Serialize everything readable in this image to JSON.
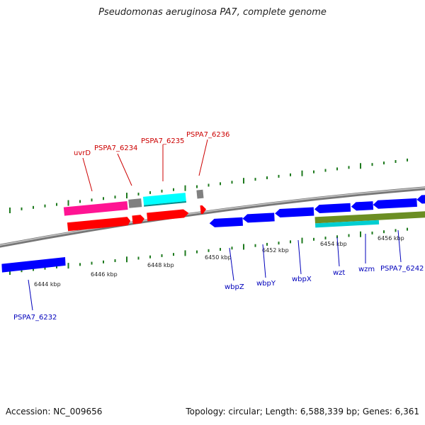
{
  "title": "Pseudomonas aeruginosa PA7, complete genome",
  "footer": {
    "accession": "Accession: NC_009656",
    "summary": "Topology: circular; Length: 6,588,339 bp; Genes: 6,361"
  },
  "colors": {
    "backbone": "#8a8a8a",
    "ticks": "#1e7a1e",
    "kbp_text": "#222222",
    "label_forward": "#cc0000",
    "label_reverse": "#0000bb"
  },
  "scale": {
    "unit": "kbp",
    "labels": [
      "6444 kbp",
      "6446 kbp",
      "6448 kbp",
      "6450 kbp",
      "6452 kbp",
      "6454 kbp",
      "6456 kbp"
    ]
  },
  "gene_labels": {
    "forward": [
      "uvrD",
      "PSPA7_6234",
      "PSPA7_6235",
      "PSPA7_6236"
    ],
    "reverse": [
      "PSPA7_6232",
      "wbpZ",
      "wbpY",
      "wbpX",
      "wzt",
      "wzm",
      "PSPA7_6242"
    ]
  },
  "feature_colors": [
    "#ff1493",
    "#808080",
    "#00ffff",
    "#ff0000",
    "#0000ff",
    "#6b8e23"
  ]
}
